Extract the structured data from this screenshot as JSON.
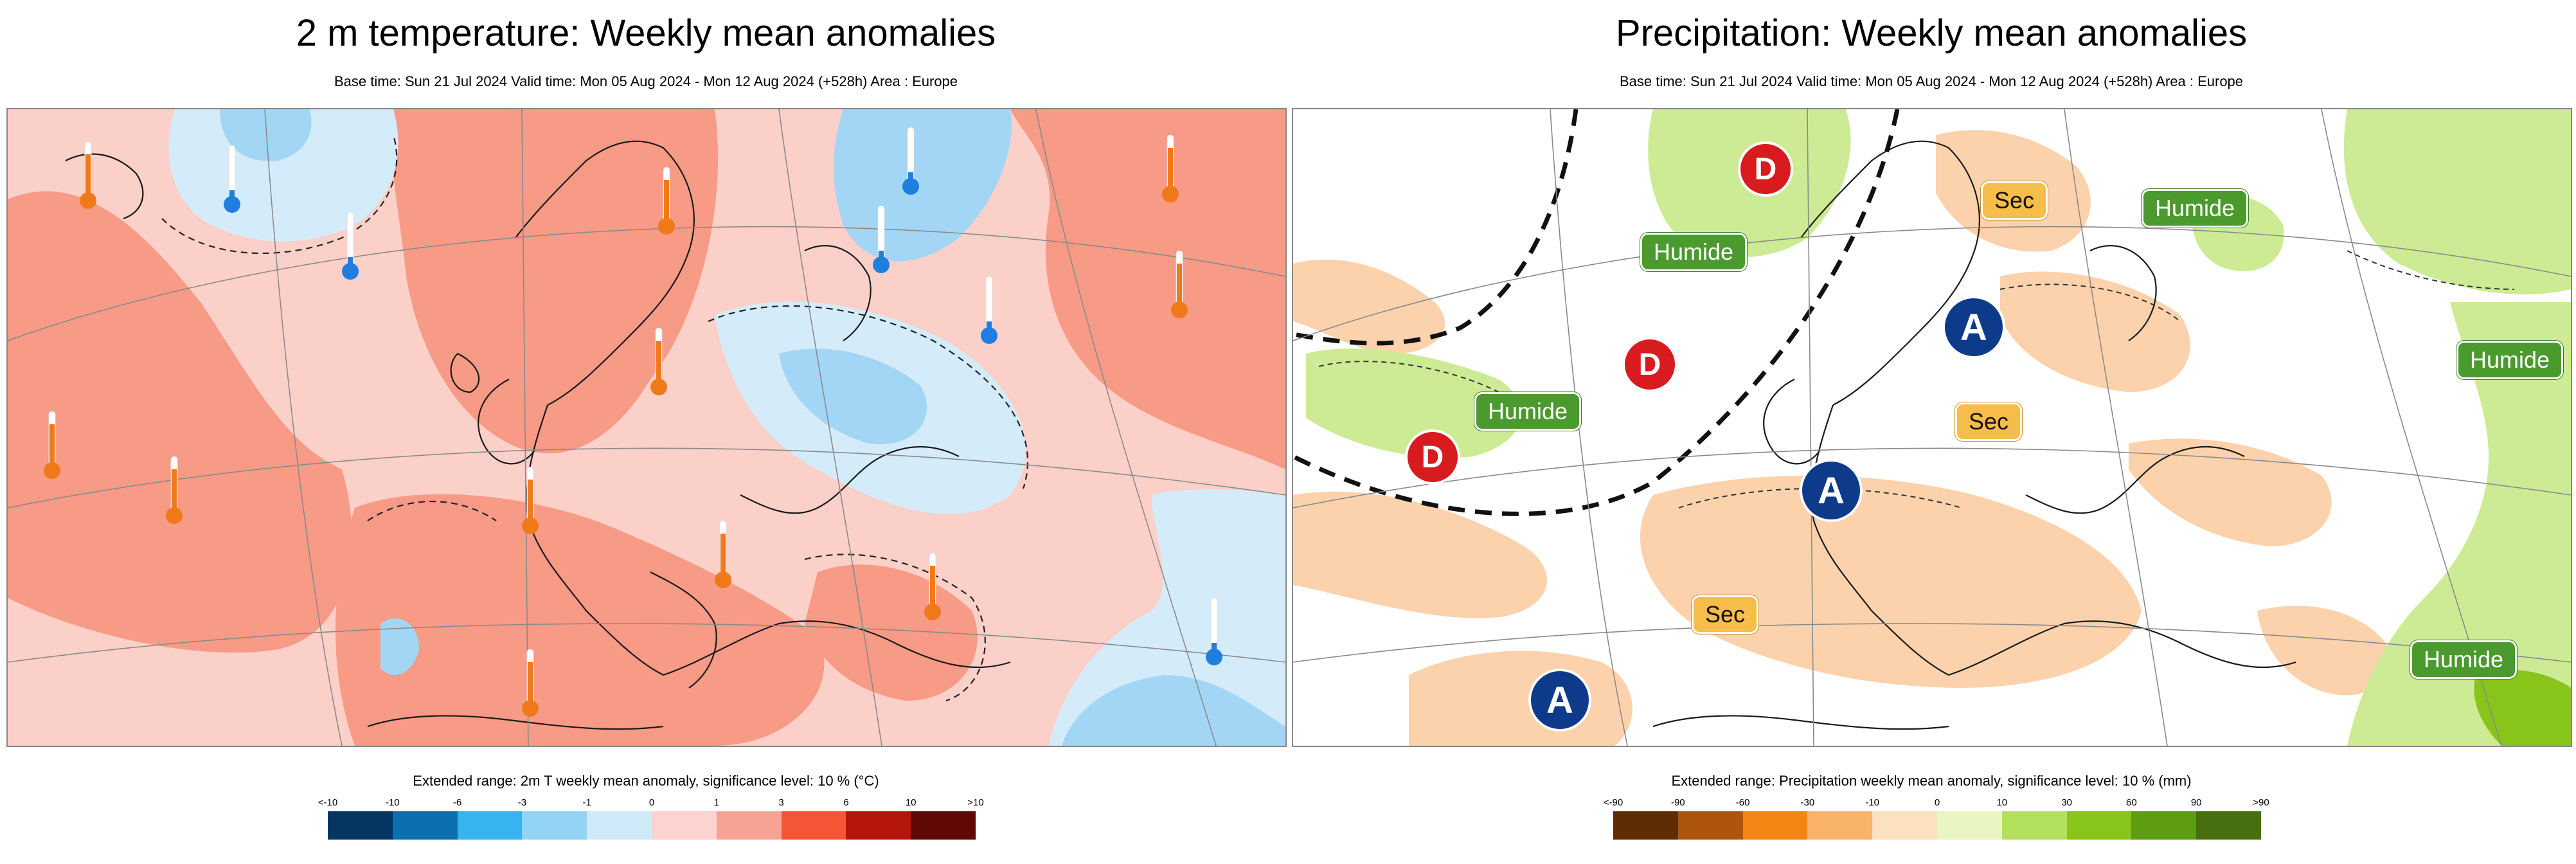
{
  "left": {
    "title": "2 m temperature: Weekly mean anomalies",
    "subtitle": "Base time: Sun 21 Jul 2024 Valid time: Mon 05 Aug 2024 - Mon 12 Aug 2024 (+528h) Area : Europe",
    "legend_title": "Extended range: 2m T weekly mean anomaly, significance level: 10 % (°C)",
    "legend_labels": [
      "<-10",
      "-10",
      "-6",
      "-3",
      "-1",
      "0",
      "1",
      "3",
      "6",
      "10",
      ">10"
    ],
    "legend_colors": [
      "#053561",
      "#0b6fb0",
      "#36b4f0",
      "#93d4f4",
      "#cfe9f8",
      "#fcd3cf",
      "#f7a394",
      "#f45535",
      "#b4160c",
      "#600806"
    ],
    "hot_color": "#f79a86",
    "light_hot_color": "#fbd0c8",
    "cold_color": "#a3d6f5",
    "light_cold_color": "#d4ecfa"
  },
  "right": {
    "title": "Precipitation: Weekly mean anomalies",
    "subtitle": "Base time: Sun 21 Jul 2024 Valid time: Mon 05 Aug 2024 - Mon 12 Aug 2024 (+528h) Area : Europe",
    "legend_title": "Extended range: Precipitation weekly mean anomaly, significance level: 10 % (mm)",
    "legend_labels": [
      "<-90",
      "-90",
      "-60",
      "-30",
      "-10",
      "0",
      "10",
      "30",
      "60",
      "90",
      ">90"
    ],
    "legend_colors": [
      "#5e2d06",
      "#ad540d",
      "#f38612",
      "#f9b36a",
      "#fde0c0",
      "#e9f6c4",
      "#b2e05c",
      "#89c41b",
      "#5e9c12",
      "#476f10"
    ],
    "dry_color": "#fbd2ac",
    "wet_color": "#cdeb95",
    "labels": {
      "humide_1": "Humide",
      "humide_2": "Humide",
      "humide_3": "Humide",
      "humide_4": "Humide",
      "humide_5": "Humide",
      "sec_1": "Sec",
      "sec_2": "Sec",
      "sec_3": "Sec",
      "d": "D",
      "a": "A"
    }
  }
}
